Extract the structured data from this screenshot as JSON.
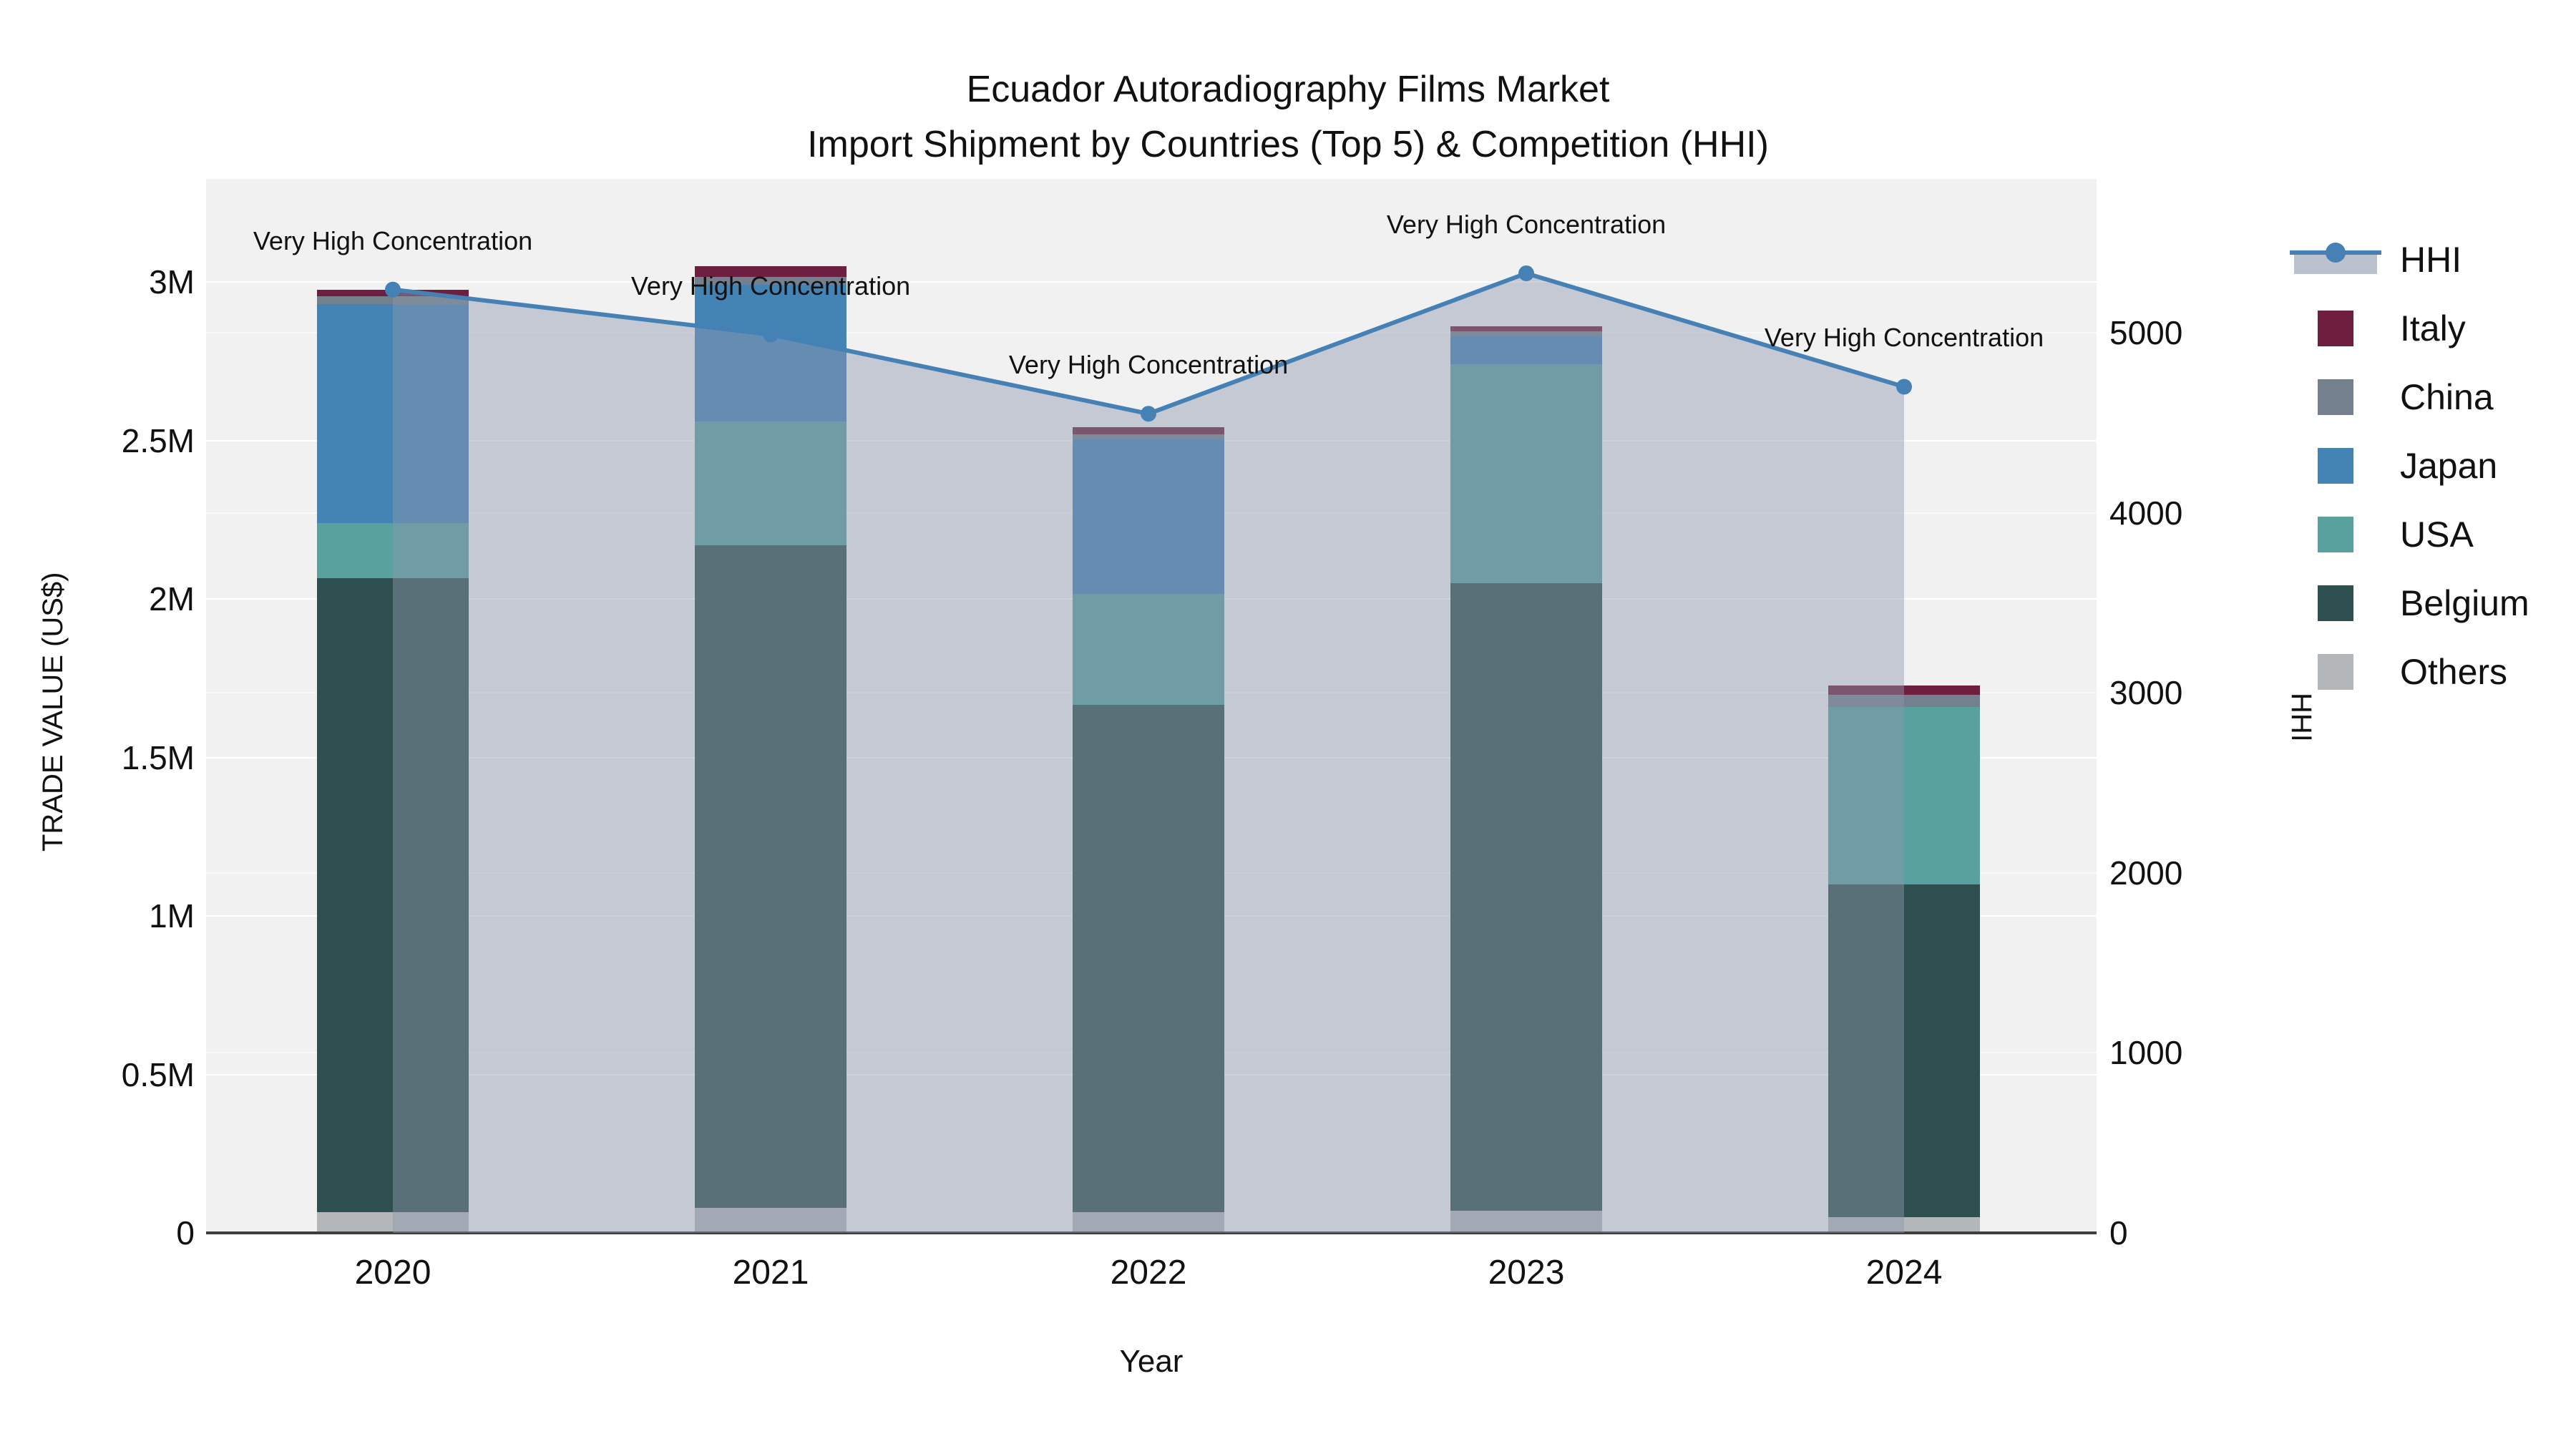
{
  "title": {
    "line1": "Ecuador Autoradiography Films Market",
    "line2": "Import Shipment by Countries (Top 5) & Competition (HHI)"
  },
  "chart_data": {
    "type": "bar+line (dual axis)",
    "title": "Ecuador Autoradiography Films Market — Import Shipment by Countries (Top 5) & Competition (HHI)",
    "xlabel": "Year",
    "ylabel_left": "TRADE VALUE (US$)",
    "ylabel_right": "HHI",
    "categories": [
      "2020",
      "2021",
      "2022",
      "2023",
      "2024"
    ],
    "unit_left": "US$ millions",
    "stack_order_bottom_to_top": [
      "Others",
      "Belgium",
      "USA",
      "Japan",
      "China",
      "Italy"
    ],
    "series": [
      {
        "name": "Others",
        "color": "#B4B7BA",
        "values": [
          0.065,
          0.08,
          0.065,
          0.07,
          0.05
        ]
      },
      {
        "name": "Belgium",
        "color": "#2E4F4F",
        "values": [
          2.0,
          2.09,
          1.6,
          1.98,
          1.05
        ]
      },
      {
        "name": "USA",
        "color": "#58A19E",
        "values": [
          0.175,
          0.39,
          0.35,
          0.69,
          0.56
        ]
      },
      {
        "name": "Japan",
        "color": "#4384B5",
        "values": [
          0.69,
          0.43,
          0.49,
          0.09,
          0.0
        ]
      },
      {
        "name": "China",
        "color": "#74808D",
        "values": [
          0.025,
          0.025,
          0.015,
          0.015,
          0.037
        ]
      },
      {
        "name": "Italy",
        "color": "#6E1E3F",
        "values": [
          0.02,
          0.035,
          0.022,
          0.015,
          0.03
        ]
      }
    ],
    "bar_totals": [
      2.975,
      3.05,
      2.542,
      2.86,
      1.727
    ],
    "hhi": {
      "name": "HHI",
      "axis": "right",
      "line_color": "#4581B5",
      "fill_color": "rgba(141,153,174,0.45)",
      "values": [
        5240,
        4990,
        4550,
        5330,
        4700
      ]
    },
    "annotations": [
      {
        "year": "2020",
        "label": "Very High Concentration"
      },
      {
        "year": "2021",
        "label": "Very High Concentration"
      },
      {
        "year": "2022",
        "label": "Very High Concentration"
      },
      {
        "year": "2023",
        "label": "Very High Concentration"
      },
      {
        "year": "2024",
        "label": "Very High Concentration"
      }
    ],
    "y_left_ticks": [
      {
        "v": 0,
        "label": "0"
      },
      {
        "v": 0.5,
        "label": "0.5M"
      },
      {
        "v": 1,
        "label": "1M"
      },
      {
        "v": 1.5,
        "label": "1.5M"
      },
      {
        "v": 2,
        "label": "2M"
      },
      {
        "v": 2.5,
        "label": "2.5M"
      },
      {
        "v": 3,
        "label": "3M"
      }
    ],
    "y_right_ticks": [
      {
        "v": 0,
        "label": "0"
      },
      {
        "v": 1000,
        "label": "1000"
      },
      {
        "v": 2000,
        "label": "2000"
      },
      {
        "v": 3000,
        "label": "3000"
      },
      {
        "v": 4000,
        "label": "4000"
      },
      {
        "v": 5000,
        "label": "5000"
      }
    ],
    "grid": true,
    "plot_bg": "#F1F1F2",
    "legend": [
      {
        "name": "HHI",
        "kind": "line"
      },
      {
        "name": "Italy",
        "kind": "swatch",
        "color": "#6E1E3F"
      },
      {
        "name": "China",
        "kind": "swatch",
        "color": "#74808D"
      },
      {
        "name": "Japan",
        "kind": "swatch",
        "color": "#4384B5"
      },
      {
        "name": "USA",
        "kind": "swatch",
        "color": "#58A19E"
      },
      {
        "name": "Belgium",
        "kind": "swatch",
        "color": "#2E4F4F"
      },
      {
        "name": "Others",
        "kind": "swatch",
        "color": "#B4B7BA"
      }
    ]
  },
  "axes": {
    "x_title": "Year",
    "y_left_title": "TRADE VALUE (US$)",
    "y_right_title": "HHI"
  }
}
